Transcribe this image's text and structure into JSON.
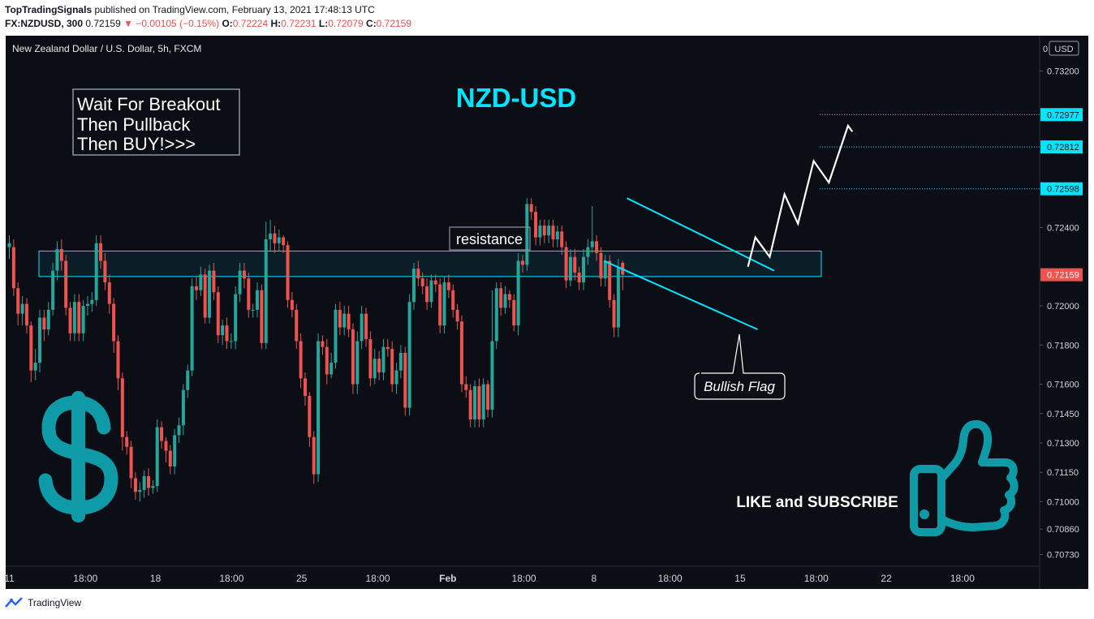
{
  "header": {
    "author": "TopTradingSignals",
    "published": "published on TradingView.com, February 13, 2021 17:48:13 UTC",
    "symbol": "FX:NZDUSD, 300",
    "last": "0.72159",
    "change": "−0.00105 (−0.15%)",
    "o_label": "O:",
    "o": "0.72224",
    "h_label": "H:",
    "h": "0.72231",
    "l_label": "L:",
    "l": "0.72079",
    "c_label": "C:",
    "c": "0.72159"
  },
  "legend": "New Zealand Dollar / U.S. Dollar, 5h, FXCM",
  "currency": "USD",
  "annotations": {
    "title": "NZD-USD",
    "note_lines": [
      "Wait For Breakout",
      "Then Pullback",
      "Then BUY!>>>"
    ],
    "resistance": "resistance",
    "flag": "Bullish Flag",
    "cta": "LIKE and SUBSCRIBE"
  },
  "icons": {
    "dollar": "dollar-icon",
    "thumb": "thumbs-up-icon",
    "logo": "tradingview-logo-icon"
  },
  "footer": {
    "brand": "TradingView"
  },
  "colors": {
    "bg": "#0c0e15",
    "up": "#26a69a",
    "down": "#ef5350",
    "cyan": "#00e5ff",
    "teal": "#0e9aa7",
    "price_tag": "#ef5350",
    "target_tag": "#00e5ff"
  },
  "chart_data": {
    "type": "candlestick",
    "title": "NZD-USD",
    "symbol": "NZDUSD",
    "timeframe": "5h",
    "ylim": [
      0.7067,
      0.7338
    ],
    "y_ticks": [
      "0.73200",
      "0.72400",
      "0.72000",
      "0.71800",
      "0.71600",
      "0.71450",
      "0.71300",
      "0.71150",
      "0.71000",
      "0.70860",
      "0.70730"
    ],
    "x_ticks": [
      {
        "label": "11",
        "x": 0
      },
      {
        "label": "18:00",
        "x": 17.5
      },
      {
        "label": "18",
        "x": 33.6
      },
      {
        "label": "18:00",
        "x": 51.1
      },
      {
        "label": "25",
        "x": 67.2
      },
      {
        "label": "18:00",
        "x": 84.7
      },
      {
        "label": "Feb",
        "x": 100.8
      },
      {
        "label": "18:00",
        "x": 118.3
      },
      {
        "label": "8",
        "x": 134.4
      },
      {
        "label": "18:00",
        "x": 151.9
      },
      {
        "label": "15",
        "x": 168.0
      },
      {
        "label": "18:00",
        "x": 185.5
      },
      {
        "label": "22",
        "x": 201.6
      },
      {
        "label": "18:00",
        "x": 219.1
      }
    ],
    "last_price": "0.72159",
    "target_levels": [
      "0.72977",
      "0.72812",
      "0.72598"
    ],
    "resistance_zone": [
      0.7215,
      0.7228
    ],
    "flag_upper": [
      [
        142.0,
        0.7255
      ],
      [
        175.8,
        0.7218
      ]
    ],
    "flag_lower": [
      [
        136.7,
        0.7223
      ],
      [
        172.0,
        0.7188
      ]
    ],
    "projection": [
      [
        169.8,
        0.722
      ],
      [
        171.5,
        0.7235
      ],
      [
        174.8,
        0.7225
      ],
      [
        178.2,
        0.7257
      ],
      [
        181.3,
        0.7242
      ],
      [
        184.9,
        0.7274
      ],
      [
        188.4,
        0.7263
      ],
      [
        192.8,
        0.7292
      ],
      [
        193.8,
        0.7289
      ]
    ],
    "candles": [
      [
        0.723,
        0.7232,
        0.7224,
        0.7236
      ],
      [
        0.723,
        0.7209,
        0.7205,
        0.7234
      ],
      [
        0.7209,
        0.7196,
        0.719,
        0.7212
      ],
      [
        0.7196,
        0.7201,
        0.719,
        0.7205
      ],
      [
        0.7201,
        0.719,
        0.7186,
        0.7204
      ],
      [
        0.719,
        0.7167,
        0.7161,
        0.7192
      ],
      [
        0.7167,
        0.7171,
        0.7162,
        0.7178
      ],
      [
        0.7171,
        0.7194,
        0.7166,
        0.7198
      ],
      [
        0.7194,
        0.7188,
        0.7182,
        0.7198
      ],
      [
        0.7188,
        0.7198,
        0.7185,
        0.7202
      ],
      [
        0.7198,
        0.7218,
        0.7195,
        0.7222
      ],
      [
        0.7218,
        0.7229,
        0.7213,
        0.7233
      ],
      [
        0.7229,
        0.7223,
        0.7218,
        0.7234
      ],
      [
        0.7223,
        0.7199,
        0.7195,
        0.7226
      ],
      [
        0.7199,
        0.7186,
        0.7182,
        0.7202
      ],
      [
        0.7186,
        0.7202,
        0.7182,
        0.7206
      ],
      [
        0.7202,
        0.7186,
        0.7182,
        0.7206
      ],
      [
        0.7186,
        0.72,
        0.7182,
        0.7203
      ],
      [
        0.72,
        0.7201,
        0.7195,
        0.7205
      ],
      [
        0.7201,
        0.7203,
        0.7197,
        0.7207
      ],
      [
        0.7203,
        0.7232,
        0.72,
        0.7236
      ],
      [
        0.7232,
        0.7223,
        0.7219,
        0.7236
      ],
      [
        0.7223,
        0.7212,
        0.7208,
        0.7227
      ],
      [
        0.7212,
        0.7201,
        0.7196,
        0.7216
      ],
      [
        0.7201,
        0.7182,
        0.7176,
        0.7204
      ],
      [
        0.7182,
        0.7163,
        0.7157,
        0.7185
      ],
      [
        0.7163,
        0.7133,
        0.7126,
        0.7166
      ],
      [
        0.7133,
        0.7128,
        0.7124,
        0.7136
      ],
      [
        0.7128,
        0.7112,
        0.7107,
        0.7131
      ],
      [
        0.7112,
        0.7105,
        0.7101,
        0.7115
      ],
      [
        0.7105,
        0.7106,
        0.71,
        0.711
      ],
      [
        0.7106,
        0.7113,
        0.7102,
        0.7116
      ],
      [
        0.7113,
        0.7107,
        0.7103,
        0.7117
      ],
      [
        0.7107,
        0.7108,
        0.7104,
        0.7111
      ],
      [
        0.7108,
        0.7138,
        0.7105,
        0.7142
      ],
      [
        0.7138,
        0.7131,
        0.7127,
        0.7141
      ],
      [
        0.7131,
        0.7126,
        0.712,
        0.7133
      ],
      [
        0.7126,
        0.7118,
        0.7114,
        0.7129
      ],
      [
        0.7118,
        0.7134,
        0.7114,
        0.7137
      ],
      [
        0.7134,
        0.7139,
        0.713,
        0.7143
      ],
      [
        0.7139,
        0.7157,
        0.7134,
        0.716
      ],
      [
        0.7157,
        0.7167,
        0.7153,
        0.717
      ],
      [
        0.7167,
        0.721,
        0.7164,
        0.7214
      ],
      [
        0.721,
        0.7208,
        0.7203,
        0.7215
      ],
      [
        0.7208,
        0.7216,
        0.7205,
        0.722
      ],
      [
        0.7216,
        0.7194,
        0.7191,
        0.7219
      ],
      [
        0.7194,
        0.7218,
        0.7191,
        0.7221
      ],
      [
        0.7218,
        0.7207,
        0.7203,
        0.7222
      ],
      [
        0.7207,
        0.7185,
        0.7181,
        0.721
      ],
      [
        0.7185,
        0.719,
        0.718,
        0.7193
      ],
      [
        0.719,
        0.7182,
        0.7178,
        0.7194
      ],
      [
        0.7182,
        0.7182,
        0.7178,
        0.7186
      ],
      [
        0.7182,
        0.7206,
        0.7178,
        0.721
      ],
      [
        0.7206,
        0.7218,
        0.7202,
        0.7222
      ],
      [
        0.7218,
        0.7214,
        0.7209,
        0.7222
      ],
      [
        0.7214,
        0.7198,
        0.7194,
        0.7217
      ],
      [
        0.7198,
        0.7198,
        0.7194,
        0.7201
      ],
      [
        0.7198,
        0.7208,
        0.7194,
        0.7212
      ],
      [
        0.7208,
        0.7181,
        0.7178,
        0.7211
      ],
      [
        0.7181,
        0.7234,
        0.7178,
        0.7243
      ],
      [
        0.7234,
        0.7237,
        0.7228,
        0.7244
      ],
      [
        0.7237,
        0.7232,
        0.7227,
        0.7241
      ],
      [
        0.7232,
        0.7235,
        0.7228,
        0.7239
      ],
      [
        0.7235,
        0.7231,
        0.7227,
        0.7236
      ],
      [
        0.7231,
        0.7203,
        0.7199,
        0.7233
      ],
      [
        0.7203,
        0.7198,
        0.7194,
        0.7207
      ],
      [
        0.7198,
        0.7182,
        0.7178,
        0.7201
      ],
      [
        0.7182,
        0.7163,
        0.7158,
        0.7186
      ],
      [
        0.7163,
        0.7154,
        0.7149,
        0.7166
      ],
      [
        0.7154,
        0.7133,
        0.7128,
        0.7156
      ],
      [
        0.7133,
        0.7114,
        0.7109,
        0.7136
      ],
      [
        0.7114,
        0.7182,
        0.711,
        0.7186
      ],
      [
        0.7182,
        0.7179,
        0.7175,
        0.7185
      ],
      [
        0.7179,
        0.7165,
        0.716,
        0.7183
      ],
      [
        0.7165,
        0.7171,
        0.7163,
        0.7176
      ],
      [
        0.7171,
        0.7198,
        0.7168,
        0.7201
      ],
      [
        0.7198,
        0.7189,
        0.7185,
        0.7202
      ],
      [
        0.7189,
        0.7196,
        0.7185,
        0.72
      ],
      [
        0.7196,
        0.7188,
        0.7184,
        0.72
      ],
      [
        0.7188,
        0.716,
        0.7155,
        0.7191
      ],
      [
        0.716,
        0.7182,
        0.7155,
        0.7187
      ],
      [
        0.7182,
        0.7196,
        0.7178,
        0.72
      ],
      [
        0.7196,
        0.7183,
        0.7179,
        0.7199
      ],
      [
        0.7183,
        0.7163,
        0.7159,
        0.7187
      ],
      [
        0.7163,
        0.7173,
        0.716,
        0.7178
      ],
      [
        0.7173,
        0.7166,
        0.7162,
        0.7177
      ],
      [
        0.7166,
        0.7179,
        0.7162,
        0.7183
      ],
      [
        0.7179,
        0.7178,
        0.7174,
        0.7183
      ],
      [
        0.7178,
        0.716,
        0.7156,
        0.7182
      ],
      [
        0.716,
        0.7167,
        0.7155,
        0.7171
      ],
      [
        0.7167,
        0.7176,
        0.7163,
        0.718
      ],
      [
        0.7176,
        0.7148,
        0.7144,
        0.7179
      ],
      [
        0.7148,
        0.7202,
        0.7144,
        0.7206
      ],
      [
        0.7202,
        0.7219,
        0.7198,
        0.7222
      ],
      [
        0.7219,
        0.7214,
        0.721,
        0.7223
      ],
      [
        0.7214,
        0.721,
        0.7206,
        0.7217
      ],
      [
        0.721,
        0.7202,
        0.7198,
        0.7214
      ],
      [
        0.7202,
        0.7213,
        0.7199,
        0.7216
      ],
      [
        0.7213,
        0.7211,
        0.7207,
        0.7216
      ],
      [
        0.7211,
        0.719,
        0.7186,
        0.7214
      ],
      [
        0.719,
        0.7212,
        0.7186,
        0.7215
      ],
      [
        0.7212,
        0.7208,
        0.7204,
        0.7216
      ],
      [
        0.7208,
        0.7198,
        0.7194,
        0.7211
      ],
      [
        0.7198,
        0.7192,
        0.7188,
        0.7201
      ],
      [
        0.7192,
        0.716,
        0.7156,
        0.7195
      ],
      [
        0.716,
        0.7157,
        0.7153,
        0.7164
      ],
      [
        0.7157,
        0.7142,
        0.7138,
        0.716
      ],
      [
        0.7142,
        0.7159,
        0.7138,
        0.7162
      ],
      [
        0.7159,
        0.7142,
        0.7138,
        0.7163
      ],
      [
        0.7142,
        0.716,
        0.7138,
        0.7163
      ],
      [
        0.716,
        0.7147,
        0.7143,
        0.7162
      ],
      [
        0.7147,
        0.7182,
        0.7143,
        0.7208
      ],
      [
        0.7182,
        0.7209,
        0.7178,
        0.7212
      ],
      [
        0.7209,
        0.7199,
        0.7195,
        0.7212
      ],
      [
        0.7199,
        0.7206,
        0.7196,
        0.721
      ],
      [
        0.7206,
        0.7203,
        0.7199,
        0.7208
      ],
      [
        0.7203,
        0.719,
        0.7187,
        0.7206
      ],
      [
        0.719,
        0.7223,
        0.7185,
        0.7227
      ],
      [
        0.7223,
        0.7221,
        0.7217,
        0.7226
      ],
      [
        0.7221,
        0.7252,
        0.7218,
        0.7255
      ],
      [
        0.7252,
        0.7248,
        0.7244,
        0.7255
      ],
      [
        0.7248,
        0.7235,
        0.7231,
        0.7251
      ],
      [
        0.7235,
        0.7241,
        0.7231,
        0.7244
      ],
      [
        0.7241,
        0.7236,
        0.7232,
        0.7244
      ],
      [
        0.7236,
        0.7241,
        0.7232,
        0.7244
      ],
      [
        0.7241,
        0.7234,
        0.723,
        0.7244
      ],
      [
        0.7234,
        0.7238,
        0.723,
        0.7241
      ],
      [
        0.7238,
        0.723,
        0.7226,
        0.7241
      ],
      [
        0.723,
        0.7213,
        0.7209,
        0.7233
      ],
      [
        0.7213,
        0.7225,
        0.721,
        0.7229
      ],
      [
        0.7225,
        0.7217,
        0.7213,
        0.7229
      ],
      [
        0.7217,
        0.7212,
        0.7208,
        0.722
      ],
      [
        0.7212,
        0.7225,
        0.7208,
        0.7229
      ],
      [
        0.7225,
        0.723,
        0.7221,
        0.7234
      ],
      [
        0.723,
        0.7233,
        0.7227,
        0.7251
      ],
      [
        0.7233,
        0.7227,
        0.7223,
        0.7236
      ],
      [
        0.7227,
        0.7214,
        0.721,
        0.723
      ],
      [
        0.7214,
        0.7223,
        0.721,
        0.7226
      ],
      [
        0.7223,
        0.7203,
        0.7199,
        0.7226
      ],
      [
        0.7203,
        0.7189,
        0.7184,
        0.7206
      ],
      [
        0.7189,
        0.722,
        0.7184,
        0.7224
      ],
      [
        0.7222,
        0.7216,
        0.7208,
        0.7223
      ]
    ]
  }
}
